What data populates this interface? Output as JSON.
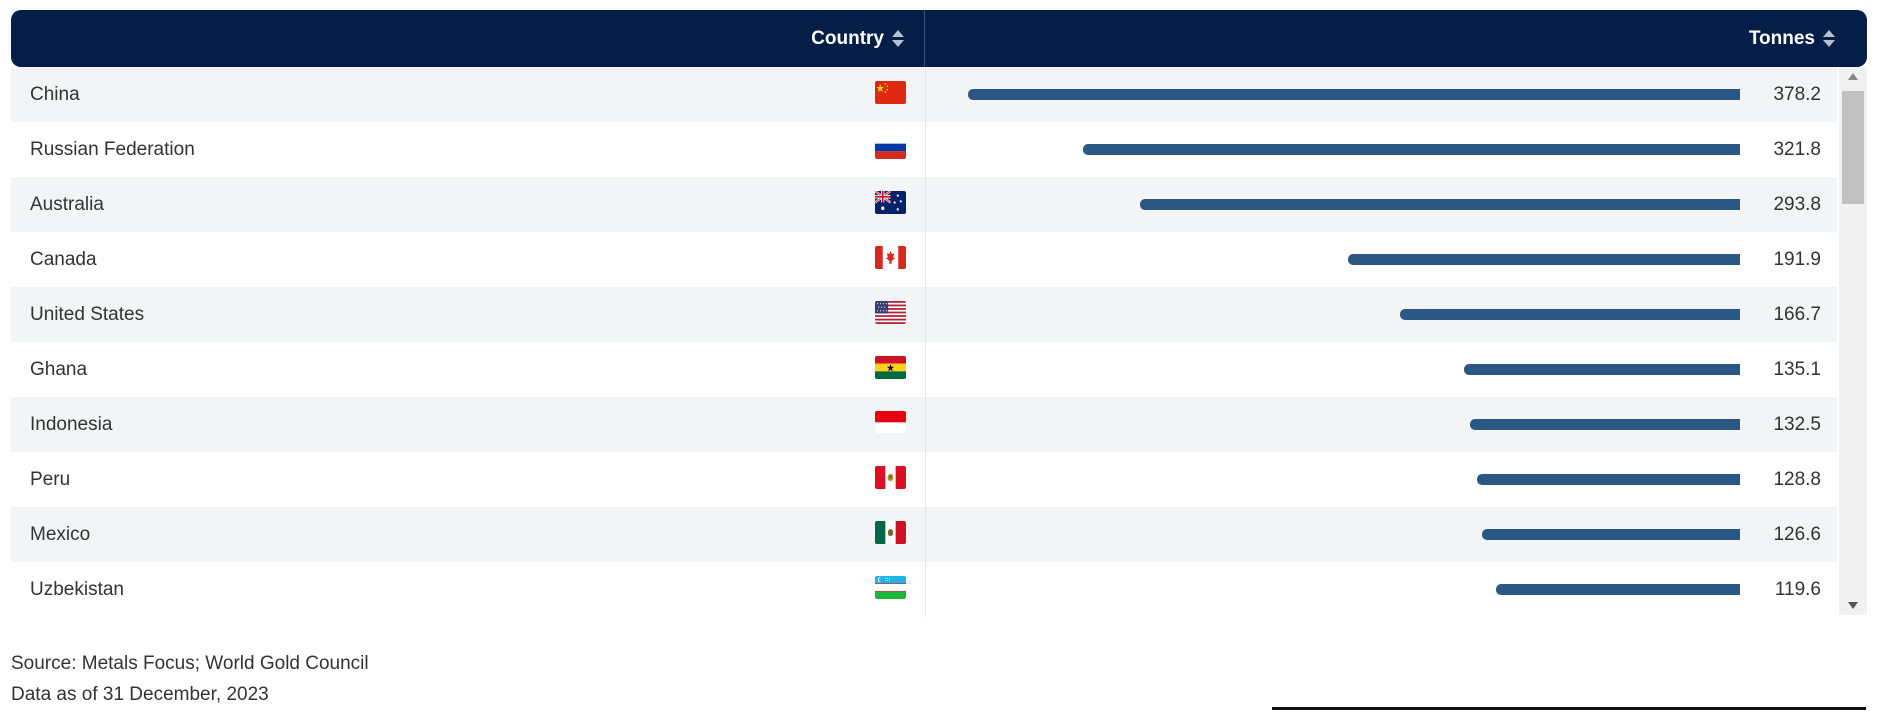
{
  "table": {
    "country_header": "Country",
    "tonnes_header": "Tonnes"
  },
  "chart_data": {
    "type": "bar",
    "orientation": "horizontal",
    "categories": [
      "China",
      "Russian Federation",
      "Australia",
      "Canada",
      "United States",
      "Ghana",
      "Indonesia",
      "Peru",
      "Mexico",
      "Uzbekistan"
    ],
    "values": [
      378.2,
      321.8,
      293.8,
      191.9,
      166.7,
      135.1,
      132.5,
      128.8,
      126.6,
      119.6
    ],
    "value_labels": [
      "378.2",
      "321.8",
      "293.8",
      "191.9",
      "166.7",
      "135.1",
      "132.5",
      "128.8",
      "126.6",
      "119.6"
    ],
    "flags": [
      "china-flag-icon",
      "russia-flag-icon",
      "australia-flag-icon",
      "canada-flag-icon",
      "united-states-flag-icon",
      "ghana-flag-icon",
      "indonesia-flag-icon",
      "peru-flag-icon",
      "mexico-flag-icon",
      "uzbekistan-flag-icon"
    ],
    "bar_color": "#2a5783",
    "xlim": [
      0,
      378.2
    ]
  },
  "footer": {
    "source": "Source: Metals Focus; World Gold Council",
    "date": "Data as of 31 December, 2023"
  },
  "colors": {
    "header_bg": "#041e48",
    "row_alt_bg": "#f3f4f6"
  }
}
